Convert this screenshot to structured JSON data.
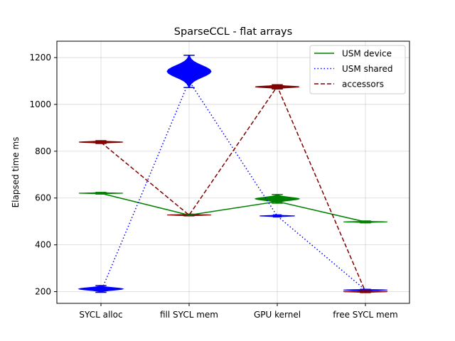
{
  "chart_data": {
    "type": "violin",
    "title": "SparseCCL - flat arrays",
    "xlabel": "",
    "ylabel": "Elapsed time ms",
    "categories": [
      "SYCL alloc",
      "fill SYCL mem",
      "GPU kernel",
      "free SYCL mem"
    ],
    "yticks": [
      200,
      400,
      600,
      800,
      1000,
      1200
    ],
    "ylim": [
      150,
      1270
    ],
    "grid": true,
    "legend_position": "upper right",
    "series": [
      {
        "name": "USM device",
        "color": "#008000",
        "line_style": "solid",
        "values": [
          620,
          527,
          585,
          498
        ],
        "violins": [
          {
            "min": 617,
            "max": 624,
            "spread": 0.5
          },
          {
            "min": 524,
            "max": 530,
            "spread": 0.4
          },
          {
            "min": 578,
            "max": 615,
            "spread": 0.5
          },
          {
            "min": 494,
            "max": 502,
            "spread": 0.5
          }
        ]
      },
      {
        "name": "USM shared",
        "color": "#0000ff",
        "line_style": "dotted",
        "values": [
          200,
          1100,
          523,
          207
        ],
        "violins": [
          {
            "min": 197,
            "max": 226,
            "spread": 0.5
          },
          {
            "min": 1072,
            "max": 1210,
            "spread": 0.5
          },
          {
            "min": 519,
            "max": 528,
            "spread": 0.4
          },
          {
            "min": 204,
            "max": 210,
            "spread": 0.5
          }
        ]
      },
      {
        "name": "accessors",
        "color": "#800000",
        "line_style": "dashed",
        "values": [
          838,
          527,
          1077,
          200
        ],
        "violins": [
          {
            "min": 833,
            "max": 845,
            "spread": 0.5
          },
          {
            "min": 524,
            "max": 531,
            "spread": 0.5
          },
          {
            "min": 1066,
            "max": 1084,
            "spread": 0.5
          },
          {
            "min": 196,
            "max": 204,
            "spread": 0.5
          }
        ]
      }
    ]
  }
}
